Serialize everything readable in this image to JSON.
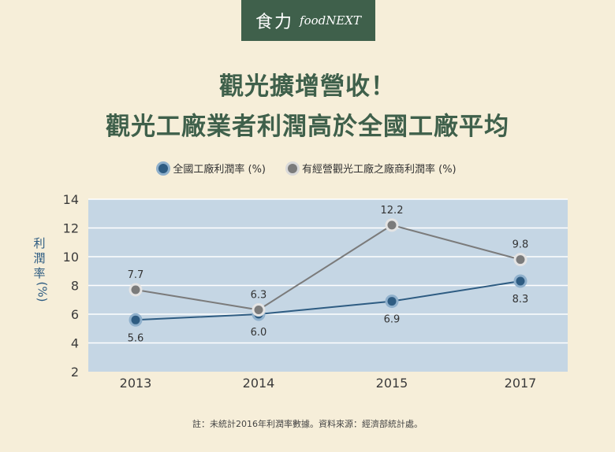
{
  "brand": {
    "logo_zh": "食力",
    "logo_en": "foodNEXT"
  },
  "title_line1": "觀光擴增營收！",
  "title_line2": "觀光工廠業者利潤高於全國工廠平均",
  "legend": [
    {
      "label": "全國工廠利潤率 (%)",
      "color": "#2e5c82"
    },
    {
      "label": "有經營觀光工廠之廠商利潤率 (%)",
      "color": "#7b7b7b"
    }
  ],
  "ylabel": {
    "text": "利潤率",
    "unit": "(%)"
  },
  "note": "註：未統計2016年利潤率數據。資料來源：經濟部統計處。",
  "colors": {
    "background": "#f6eed9",
    "plot_bg": "#c5d6e4",
    "brand_green": "#3f604b"
  },
  "chart_data": {
    "type": "line",
    "categories": [
      "2013",
      "2014",
      "2015",
      "2017"
    ],
    "ylim": [
      2,
      14
    ],
    "yticks": [
      2,
      4,
      6,
      8,
      10,
      12,
      14
    ],
    "grid": true,
    "legend_position": "top",
    "series": [
      {
        "name": "全國工廠利潤率 (%)",
        "values": [
          5.6,
          6.0,
          6.9,
          8.3
        ],
        "labels": [
          "5.6",
          "6.0",
          "6.9",
          "8.3"
        ],
        "label_pos": "below",
        "color": "#2e5c82",
        "halo": "#8fb0cc"
      },
      {
        "name": "有經營觀光工廠之廠商利潤率 (%)",
        "values": [
          7.7,
          6.3,
          12.2,
          9.8
        ],
        "labels": [
          "7.7",
          "6.3",
          "12.2",
          "9.8"
        ],
        "label_pos": "above",
        "color": "#7b7b7b",
        "halo": "#e4e4e4"
      }
    ]
  }
}
